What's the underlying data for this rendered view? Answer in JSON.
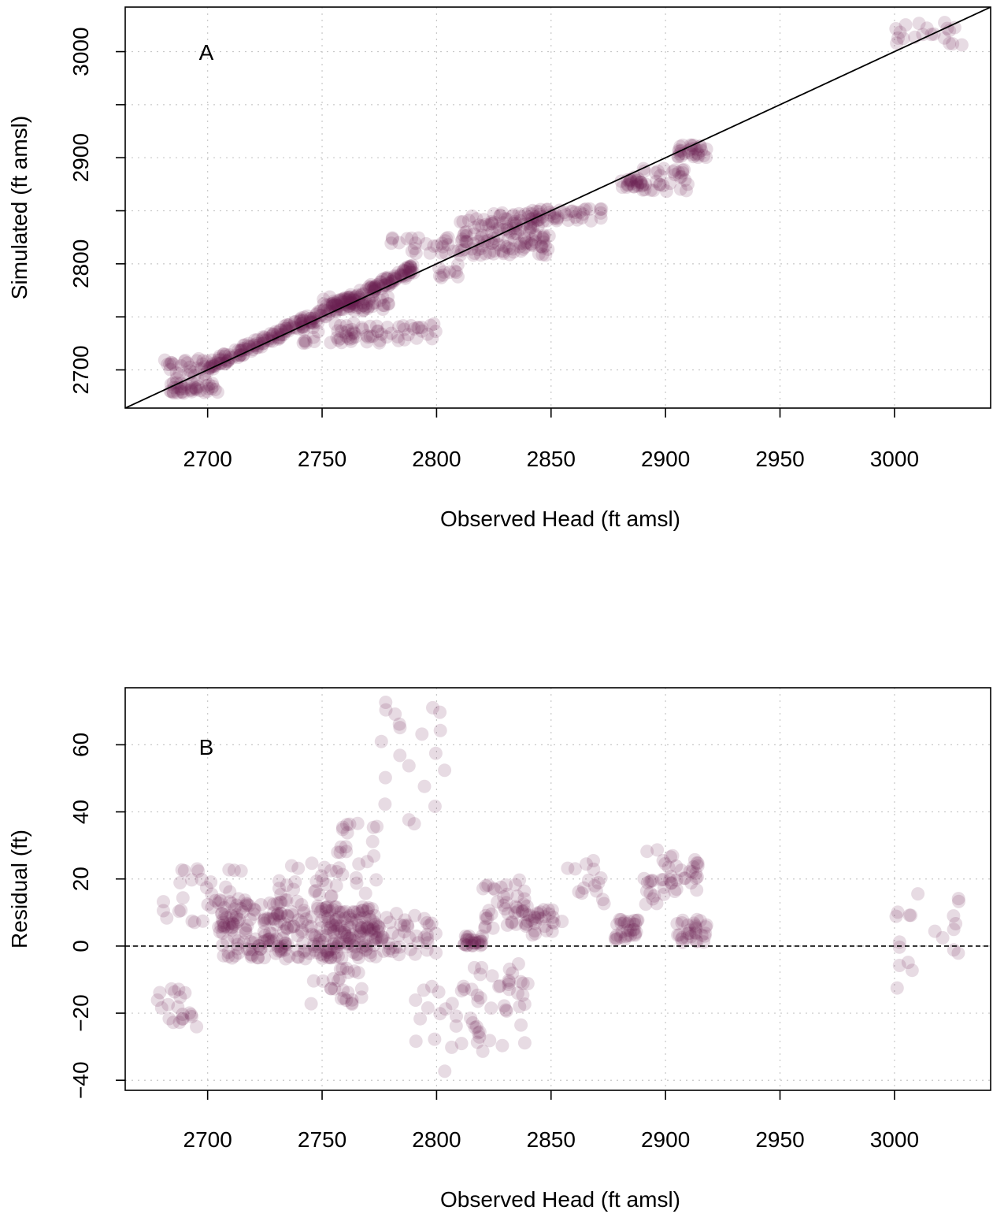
{
  "colors": {
    "point": "#6a1f52",
    "reference_line": "#000000",
    "grid": "#c8c8c8"
  },
  "point_opacity": 0.16,
  "chart_data": [
    {
      "type": "scatter",
      "panel_label": "A",
      "xlabel": "Observed Head (ft amsl)",
      "ylabel": "Simulated (ft amsl)",
      "xlim": [
        2664,
        3042
      ],
      "ylim": [
        2664,
        3042
      ],
      "xticks": [
        2700,
        2750,
        2800,
        2850,
        2900,
        2950,
        3000
      ],
      "yticks": [
        2700,
        2800,
        2900,
        3000
      ],
      "ygrid": [
        2700,
        2750,
        2800,
        2850,
        2900,
        2950,
        3000
      ],
      "grid": true,
      "reference_line": "1:1",
      "clusters": [
        {
          "x": [
            2680,
            2700
          ],
          "y": [
            2690,
            2712
          ],
          "n": 30
        },
        {
          "x": [
            2682,
            2705
          ],
          "y": [
            2678,
            2688
          ],
          "n": 40
        },
        {
          "x": [
            2700,
            2745
          ],
          "y": [
            2703,
            2748
          ],
          "n": 130,
          "along": true
        },
        {
          "x": [
            2745,
            2790
          ],
          "y": [
            2748,
            2795
          ],
          "n": 130,
          "along": true
        },
        {
          "x": [
            2740,
            2800
          ],
          "y": [
            2725,
            2745
          ],
          "n": 70
        },
        {
          "x": [
            2750,
            2780
          ],
          "y": [
            2755,
            2770
          ],
          "n": 60
        },
        {
          "x": [
            2780,
            2810
          ],
          "y": [
            2810,
            2825
          ],
          "n": 25
        },
        {
          "x": [
            2800,
            2810
          ],
          "y": [
            2785,
            2800
          ],
          "n": 10
        },
        {
          "x": [
            2810,
            2850
          ],
          "y": [
            2808,
            2848
          ],
          "n": 140
        },
        {
          "x": [
            2840,
            2875
          ],
          "y": [
            2840,
            2852
          ],
          "n": 40
        },
        {
          "x": [
            2880,
            2890
          ],
          "y": [
            2872,
            2883
          ],
          "n": 25
        },
        {
          "x": [
            2890,
            2910
          ],
          "y": [
            2868,
            2890
          ],
          "n": 30
        },
        {
          "x": [
            2905,
            2918
          ],
          "y": [
            2900,
            2913
          ],
          "n": 30
        },
        {
          "x": [
            3000,
            3030
          ],
          "y": [
            3005,
            3028
          ],
          "n": 20
        }
      ]
    },
    {
      "type": "scatter",
      "panel_label": "B",
      "xlabel": "Observed Head (ft amsl)",
      "ylabel": "Residual (ft)",
      "xlim": [
        2664,
        3042
      ],
      "ylim": [
        -43,
        77
      ],
      "xticks": [
        2700,
        2750,
        2800,
        2850,
        2900,
        2950,
        3000
      ],
      "yticks": [
        -40,
        -20,
        0,
        20,
        40,
        60
      ],
      "ygrid": [
        -40,
        -20,
        0,
        20,
        40,
        60
      ],
      "grid": true,
      "reference_line": "y=0 dashed",
      "clusters": [
        {
          "x": [
            2678,
            2700
          ],
          "y": [
            -25,
            -12
          ],
          "n": 20
        },
        {
          "x": [
            2680,
            2715
          ],
          "y": [
            3,
            24
          ],
          "n": 30
        },
        {
          "x": [
            2705,
            2745
          ],
          "y": [
            -4,
            14
          ],
          "n": 160
        },
        {
          "x": [
            2745,
            2775
          ],
          "y": [
            -4,
            12
          ],
          "n": 160
        },
        {
          "x": [
            2730,
            2755
          ],
          "y": [
            14,
            26
          ],
          "n": 20
        },
        {
          "x": [
            2755,
            2775
          ],
          "y": [
            15,
            38
          ],
          "n": 25
        },
        {
          "x": [
            2745,
            2770
          ],
          "y": [
            -18,
            -6
          ],
          "n": 25
        },
        {
          "x": [
            2775,
            2800
          ],
          "y": [
            -4,
            10
          ],
          "n": 40
        },
        {
          "x": [
            2775,
            2805
          ],
          "y": [
            35,
            73
          ],
          "n": 20
        },
        {
          "x": [
            2790,
            2815
          ],
          "y": [
            -38,
            -10
          ],
          "n": 20
        },
        {
          "x": [
            2812,
            2820
          ],
          "y": [
            0,
            3
          ],
          "n": 25
        },
        {
          "x": [
            2815,
            2840
          ],
          "y": [
            -32,
            -5
          ],
          "n": 40
        },
        {
          "x": [
            2820,
            2840
          ],
          "y": [
            5,
            22
          ],
          "n": 40
        },
        {
          "x": [
            2835,
            2855
          ],
          "y": [
            3,
            12
          ],
          "n": 30
        },
        {
          "x": [
            2855,
            2875
          ],
          "y": [
            12,
            27
          ],
          "n": 15
        },
        {
          "x": [
            2878,
            2888
          ],
          "y": [
            1,
            8
          ],
          "n": 30
        },
        {
          "x": [
            2890,
            2905
          ],
          "y": [
            12,
            30
          ],
          "n": 30
        },
        {
          "x": [
            2905,
            2918
          ],
          "y": [
            1,
            8
          ],
          "n": 30
        },
        {
          "x": [
            2905,
            2915
          ],
          "y": [
            15,
            26
          ],
          "n": 15
        },
        {
          "x": [
            3000,
            3030
          ],
          "y": [
            -13,
            16
          ],
          "n": 20
        }
      ]
    }
  ]
}
